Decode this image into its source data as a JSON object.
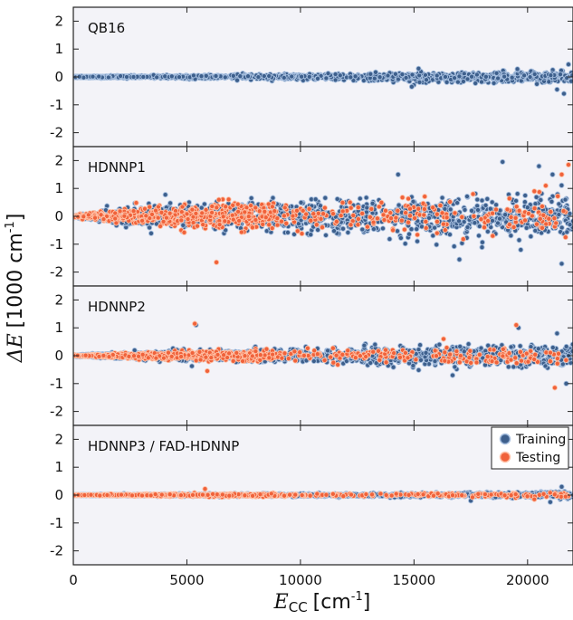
{
  "chart_data": {
    "type": "scatter",
    "xlabel_main": "E",
    "xlabel_sub": "CC",
    "xlabel_unit": "[cm",
    "xlabel_unit_exp": "-1",
    "xlabel_unit_close": "]",
    "ylabel_prefix": "ΔE",
    "ylabel_unit": "[1000 cm",
    "ylabel_unit_exp": "-1",
    "ylabel_unit_close": "]",
    "xlim": [
      0,
      22000
    ],
    "ylim": [
      -2.5,
      2.5
    ],
    "xticks": [
      0,
      5000,
      10000,
      15000,
      20000
    ],
    "xtick_labels": [
      "0",
      "5000",
      "10000",
      "15000",
      "20000"
    ],
    "yticks": [
      2,
      1,
      0,
      -1,
      -2
    ],
    "ytick_labels": [
      "2",
      "1",
      "0",
      "-1",
      "-2"
    ],
    "grid": false,
    "legend": {
      "placement": "top-right of bottom panel",
      "entries": [
        {
          "name": "Training",
          "color": "#3d5f8c"
        },
        {
          "name": "Testing",
          "color": "#f0623a"
        }
      ]
    },
    "colors": {
      "training_fill": "#3d5f8c",
      "training_edge": "#a8c0e0",
      "testing_fill": "#f0623a",
      "testing_edge": "#ffc2a8",
      "panel_bg": "#f3f3f8"
    },
    "panels": [
      {
        "label": "QB16",
        "series": [
          {
            "name": "Training",
            "spread_profile": [
              [
                0,
                0.02
              ],
              [
                5000,
                0.06
              ],
              [
                10000,
                0.08
              ],
              [
                15000,
                0.13
              ],
              [
                22000,
                0.2
              ]
            ],
            "notable_points": [
              [
                21300,
                -0.45
              ],
              [
                21600,
                -0.6
              ],
              [
                15200,
                0.3
              ],
              [
                21800,
                0.45
              ],
              [
                14900,
                -0.35
              ]
            ]
          }
        ]
      },
      {
        "label": "HDNNP1",
        "series": [
          {
            "name": "Training",
            "spread_profile": [
              [
                0,
                0.03
              ],
              [
                2500,
                0.3
              ],
              [
                5000,
                0.45
              ],
              [
                10000,
                0.5
              ],
              [
                15000,
                0.6
              ],
              [
                22000,
                0.75
              ]
            ],
            "notable_points": [
              [
                18900,
                1.95
              ],
              [
                20500,
                1.8
              ],
              [
                21100,
                1.5
              ],
              [
                14300,
                1.5
              ],
              [
                21500,
                -1.7
              ],
              [
                17000,
                -1.55
              ],
              [
                19700,
                -1.2
              ]
            ]
          },
          {
            "name": "Testing",
            "spread_profile": [
              [
                0,
                0.03
              ],
              [
                2500,
                0.25
              ],
              [
                5000,
                0.4
              ],
              [
                9000,
                0.45
              ],
              [
                15000,
                0.5
              ],
              [
                22000,
                0.6
              ]
            ],
            "notable_points": [
              [
                6300,
                -1.65
              ],
              [
                21500,
                1.5
              ],
              [
                21800,
                1.85
              ],
              [
                20800,
                1.1
              ],
              [
                17600,
                0.8
              ],
              [
                20300,
                0.9
              ]
            ]
          }
        ]
      },
      {
        "label": "HDNNP2",
        "series": [
          {
            "name": "Training",
            "spread_profile": [
              [
                0,
                0.02
              ],
              [
                2500,
                0.1
              ],
              [
                5000,
                0.2
              ],
              [
                10000,
                0.22
              ],
              [
                15000,
                0.28
              ],
              [
                22000,
                0.35
              ]
            ],
            "notable_points": [
              [
                21700,
                -1.0
              ],
              [
                21300,
                0.8
              ],
              [
                19600,
                1.0
              ],
              [
                16700,
                -0.7
              ],
              [
                5400,
                1.1
              ]
            ]
          },
          {
            "name": "Testing",
            "spread_profile": [
              [
                0,
                0.02
              ],
              [
                2500,
                0.08
              ],
              [
                5000,
                0.15
              ],
              [
                10000,
                0.2
              ],
              [
                15000,
                0.22
              ],
              [
                22000,
                0.3
              ]
            ],
            "notable_points": [
              [
                5350,
                1.15
              ],
              [
                19500,
                1.1
              ],
              [
                21200,
                -1.15
              ],
              [
                5900,
                -0.55
              ],
              [
                16300,
                0.6
              ]
            ]
          }
        ]
      },
      {
        "label": "HDNNP3 / FAD-HDNNP",
        "series": [
          {
            "name": "Training",
            "spread_profile": [
              [
                0,
                0.01
              ],
              [
                5000,
                0.04
              ],
              [
                10000,
                0.05
              ],
              [
                15000,
                0.06
              ],
              [
                22000,
                0.1
              ]
            ],
            "notable_points": [
              [
                21500,
                0.3
              ],
              [
                21000,
                -0.25
              ],
              [
                17500,
                -0.2
              ]
            ]
          },
          {
            "name": "Testing",
            "spread_profile": [
              [
                0,
                0.01
              ],
              [
                5000,
                0.04
              ],
              [
                10000,
                0.05
              ],
              [
                15000,
                0.05
              ],
              [
                22000,
                0.08
              ]
            ],
            "notable_points": [
              [
                5800,
                0.22
              ],
              [
                20300,
                -0.15
              ]
            ]
          }
        ]
      }
    ]
  }
}
